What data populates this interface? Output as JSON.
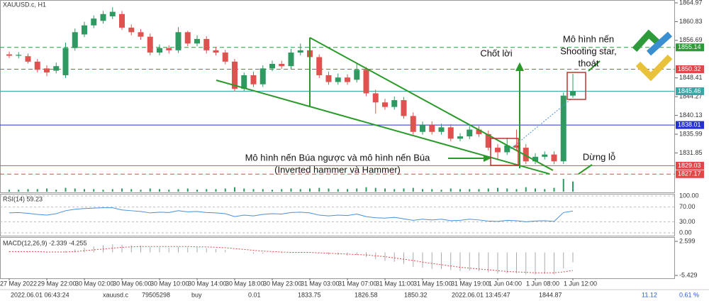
{
  "chart_data": {
    "type": "candlestick",
    "title": "XAUUSD.c, H1",
    "categories": [
      "27 May 2022",
      null,
      null,
      null,
      "29 May 22:00",
      null,
      null,
      null,
      "30 May 02:00",
      null,
      null,
      null,
      "30 May 06:00",
      null,
      null,
      null,
      "30 May 10:00",
      null,
      null,
      null,
      "30 May 14:00",
      null,
      null,
      null,
      "30 May 18:00",
      null,
      null,
      null,
      "30 May 23:00",
      null,
      null,
      null,
      "31 May 03:00",
      null,
      null,
      null,
      "31 May 07:00",
      null,
      null,
      null,
      "31 May 11:00",
      null,
      null,
      null,
      "31 May 15:00",
      null,
      null,
      null,
      "31 May 19:00",
      null,
      null,
      null,
      "1 Jun 04:00",
      null,
      null,
      null,
      "1 Jun 08:00",
      null,
      null,
      null,
      "1 Jun 12:00"
    ],
    "open": [
      1853.6,
      1853.3,
      1853.2,
      1852,
      1850.5,
      1850,
      1849,
      1855,
      1858,
      1860,
      1861,
      1862,
      1862.5,
      1859.5,
      1858.5,
      1857.5,
      1854,
      1855,
      1854.5,
      1858.5,
      1856,
      1857,
      1854.5,
      1854,
      1852,
      1846,
      1849,
      1847,
      1850.5,
      1851.5,
      1851,
      1854,
      1854.5,
      1853,
      1849,
      1847.5,
      1848.5,
      1848,
      1850.2,
      1845,
      1843,
      1842,
      1843.5,
      1840,
      1836.5,
      1838,
      1836.5,
      1837.5,
      1835,
      1835.5,
      1837,
      1836,
      1833,
      1832,
      1833.5,
      1833,
      1830,
      1831,
      1831.5,
      1830,
      1844.5
    ],
    "high": [
      1854.2,
      1854.1,
      1853.8,
      1852.6,
      1851.2,
      1851.8,
      1856.2,
      1859.3,
      1860.8,
      1862.2,
      1863.2,
      1864,
      1863.2,
      1860.2,
      1859.2,
      1858.2,
      1855.8,
      1855.6,
      1859.6,
      1858.8,
      1857.8,
      1857.6,
      1855.2,
      1854.6,
      1852.6,
      1849.6,
      1849.8,
      1851.2,
      1852.2,
      1852.2,
      1854.8,
      1856,
      1855.3,
      1853.6,
      1849.8,
      1849.4,
      1849.2,
      1851.5,
      1850.8,
      1845.8,
      1843.8,
      1844.3,
      1844.2,
      1840.8,
      1838.8,
      1838.8,
      1838.3,
      1838.2,
      1836.2,
      1837.8,
      1837.8,
      1836.8,
      1833.8,
      1835.2,
      1837,
      1833.8,
      1831.8,
      1832.2,
      1832.2,
      1845.2,
      1849.3
    ],
    "low": [
      1852.8,
      1852.7,
      1851.6,
      1849.6,
      1848.8,
      1849.4,
      1848.4,
      1854.4,
      1857.4,
      1859.4,
      1860.4,
      1861.4,
      1859,
      1857.8,
      1856.8,
      1853.4,
      1853.4,
      1853.8,
      1853.9,
      1855.4,
      1855.4,
      1853.8,
      1853.4,
      1851.4,
      1845.4,
      1845.4,
      1846.4,
      1846.4,
      1849.9,
      1850.4,
      1850.4,
      1853.4,
      1852.4,
      1848.4,
      1846.9,
      1846.9,
      1846.9,
      1847.4,
      1844.4,
      1840.5,
      1841.4,
      1841.4,
      1839.4,
      1835.9,
      1835.9,
      1835.9,
      1835.9,
      1834.4,
      1834.4,
      1834.9,
      1835.4,
      1832.4,
      1830.5,
      1831.4,
      1832.4,
      1829.4,
      1829.4,
      1830.4,
      1829.4,
      1829.4,
      1844
    ],
    "close": [
      1853.3,
      1853.5,
      1852,
      1850.2,
      1849.6,
      1851,
      1855,
      1858.5,
      1860,
      1861.5,
      1862.5,
      1863,
      1859.5,
      1858.5,
      1857.5,
      1854,
      1855,
      1854.5,
      1858.5,
      1856,
      1857,
      1854.5,
      1854,
      1852,
      1846,
      1849,
      1847,
      1850.5,
      1851.5,
      1851,
      1854,
      1854.5,
      1853,
      1849,
      1847.5,
      1848.5,
      1847.5,
      1850.2,
      1845,
      1843,
      1842,
      1843.5,
      1840,
      1836.5,
      1838,
      1836.5,
      1837.5,
      1835,
      1835.5,
      1837,
      1836,
      1833,
      1832,
      1833.5,
      1833,
      1830,
      1831,
      1831.5,
      1830,
      1844.5,
      1845.46
    ],
    "up_color": "#2e9a62",
    "down_color": "#e0524f",
    "volumes": [
      3,
      3,
      4,
      4,
      5,
      3,
      6,
      5,
      4,
      4,
      3,
      4,
      5,
      4,
      3,
      5,
      4,
      3,
      4,
      5,
      3,
      4,
      4,
      5,
      7,
      5,
      4,
      4,
      3,
      4,
      5,
      4,
      5,
      6,
      5,
      4,
      4,
      5,
      7,
      6,
      5,
      4,
      5,
      6,
      4,
      4,
      3,
      5,
      4,
      4,
      4,
      5,
      6,
      5,
      4,
      7,
      5,
      4,
      6,
      20,
      16
    ],
    "ylim": [
      1823.3,
      1865.6
    ],
    "yticks": [
      1864.97,
      1860.83,
      1856.69,
      1848.41,
      1844.27,
      1840.13,
      1835.99,
      1831.85
    ],
    "levels": [
      {
        "value": 1855.14,
        "color": "#2e9a3a",
        "style": "dashed"
      },
      {
        "value": 1850.32,
        "color": "#e04848",
        "style": "dashed"
      },
      {
        "value": 1845.46,
        "color": "#3aa6a6",
        "style": "solid"
      },
      {
        "value": 1838.01,
        "color": "#2430d0",
        "style": "solid"
      },
      {
        "value": 1829.03,
        "color": "#e04848",
        "style": "solid"
      },
      {
        "value": 1827.17,
        "color": "#e04848",
        "style": "dashed"
      }
    ],
    "annotations": {
      "take_profit": "Chốt lời",
      "shooting_star": [
        "Mô hình nến",
        "Shooting star,",
        "thoát"
      ],
      "hammer": [
        "Mô hình nến Búa ngược và mô hình nến Búa",
        "(Inverted hammer và Hammer)"
      ],
      "stop_loss": "Dừng lỗ"
    },
    "rsi": {
      "label": "RSI(14) 59.23",
      "color": "#4a90d9",
      "values": [
        54,
        55,
        53,
        50,
        48,
        52,
        60,
        64,
        66,
        67,
        68,
        68,
        62,
        60,
        58,
        54,
        56,
        55,
        60,
        57,
        58,
        55,
        54,
        52,
        44,
        48,
        46,
        50,
        52,
        51,
        55,
        56,
        54,
        48,
        46,
        48,
        47,
        51,
        44,
        41,
        40,
        42,
        38,
        34,
        37,
        35,
        37,
        33,
        34,
        37,
        35,
        32,
        31,
        34,
        33,
        30,
        32,
        33,
        31,
        55,
        59.23
      ],
      "ylim": [
        -9.6,
        105.8
      ],
      "yticks": [
        {
          "value": 100,
          "label": "100.00"
        },
        {
          "value": 70,
          "label": "70.00"
        },
        {
          "value": 30,
          "label": "30.00"
        },
        {
          "value": 0,
          "label": "0.00"
        }
      ]
    },
    "macd": {
      "label": "MACD(12,26,9) -2.339 -4.255",
      "hist_color": "#aaaaaa",
      "signal_color": "#e04848",
      "histogram": [
        0.3,
        0.3,
        0.2,
        0.1,
        -0.1,
        0,
        0.3,
        0.7,
        1.1,
        1.4,
        1.7,
        1.9,
        1.8,
        1.7,
        1.6,
        1.3,
        1.2,
        1.1,
        1.3,
        1.2,
        1.2,
        1,
        0.8,
        0.6,
        0,
        -0.1,
        -0.3,
        -0.3,
        -0.2,
        -0.2,
        0,
        0.1,
        0.1,
        -0.2,
        -0.5,
        -0.6,
        -0.7,
        -0.6,
        -1.1,
        -1.6,
        -2,
        -2.2,
        -2.7,
        -3.4,
        -3.6,
        -3.9,
        -3.9,
        -4.2,
        -4.4,
        -4.3,
        -4.4,
        -4.7,
        -5,
        -4.9,
        -4.9,
        -5.2,
        -5.2,
        -5.1,
        -5.2,
        -3.8,
        -2.339
      ],
      "signal": [
        0.2,
        0.2,
        0.2,
        0.2,
        0.1,
        0.1,
        0.1,
        0.2,
        0.4,
        0.6,
        0.8,
        1,
        1.2,
        1.3,
        1.4,
        1.4,
        1.4,
        1.4,
        1.4,
        1.4,
        1.3,
        1.3,
        1.2,
        1.1,
        0.9,
        0.7,
        0.5,
        0.3,
        0.2,
        0.1,
        0,
        0,
        0,
        -0.1,
        -0.2,
        -0.3,
        -0.4,
        -0.5,
        -0.6,
        -0.8,
        -1,
        -1.3,
        -1.6,
        -1.9,
        -2.3,
        -2.6,
        -2.9,
        -3.2,
        -3.5,
        -3.7,
        -3.9,
        -4.1,
        -4.3,
        -4.5,
        -4.6,
        -4.7,
        -4.8,
        -4.8,
        -4.8,
        -4.6,
        -4.255
      ],
      "ylim": [
        -6.1,
        3.44
      ],
      "yticks": [
        2.599,
        -5.429
      ]
    },
    "status_bar": [
      "2022.06.01 06:43:24",
      "xauusd.c",
      "79505298",
      "buy",
      "0.01",
      "1833.75",
      "1826.58",
      "1850.32",
      "2022.06.01 13:45:47",
      "1844.87",
      "11.12",
      "0.61 %"
    ]
  }
}
